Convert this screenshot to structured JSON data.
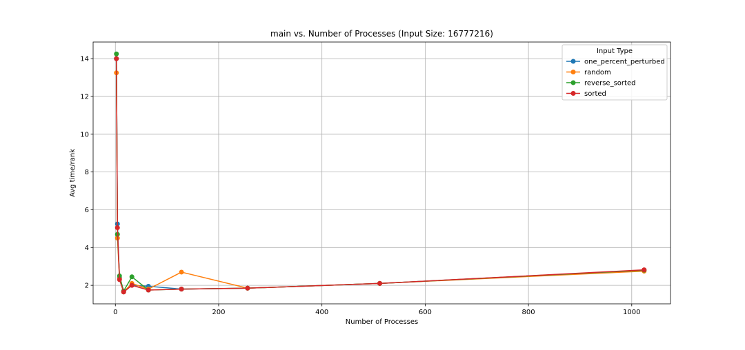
{
  "chart_data": {
    "type": "line",
    "title": "main vs. Number of Processes (Input Size: 16777216)",
    "xlabel": "Number of Processes",
    "ylabel": "Avg time/rank",
    "xlim": [
      -43.1,
      1075.1
    ],
    "ylim": [
      1.02,
      14.88
    ],
    "xticks": [
      0,
      200,
      400,
      600,
      800,
      1000
    ],
    "yticks": [
      2,
      4,
      6,
      8,
      10,
      12,
      14
    ],
    "grid": true,
    "legend": {
      "title": "Input Type",
      "position": "top-right"
    },
    "x": [
      2,
      4,
      8,
      16,
      32,
      64,
      128,
      256,
      512,
      1024
    ],
    "series": [
      {
        "name": "one_percent_perturbed",
        "color": "#1f77b4",
        "values": [
          14.0,
          5.25,
          2.4,
          1.65,
          2.0,
          1.95,
          1.8,
          1.85,
          2.1,
          2.8
        ]
      },
      {
        "name": "random",
        "color": "#ff7f0e",
        "values": [
          13.25,
          4.5,
          2.35,
          1.65,
          2.1,
          1.8,
          2.7,
          1.85,
          2.1,
          2.75
        ]
      },
      {
        "name": "reverse_sorted",
        "color": "#2ca02c",
        "values": [
          14.25,
          4.7,
          2.5,
          1.7,
          2.45,
          1.75,
          1.8,
          1.85,
          2.1,
          2.8
        ]
      },
      {
        "name": "sorted",
        "color": "#d62728",
        "values": [
          14.0,
          5.05,
          2.3,
          1.65,
          2.0,
          1.75,
          1.8,
          1.85,
          2.1,
          2.82
        ]
      }
    ]
  }
}
